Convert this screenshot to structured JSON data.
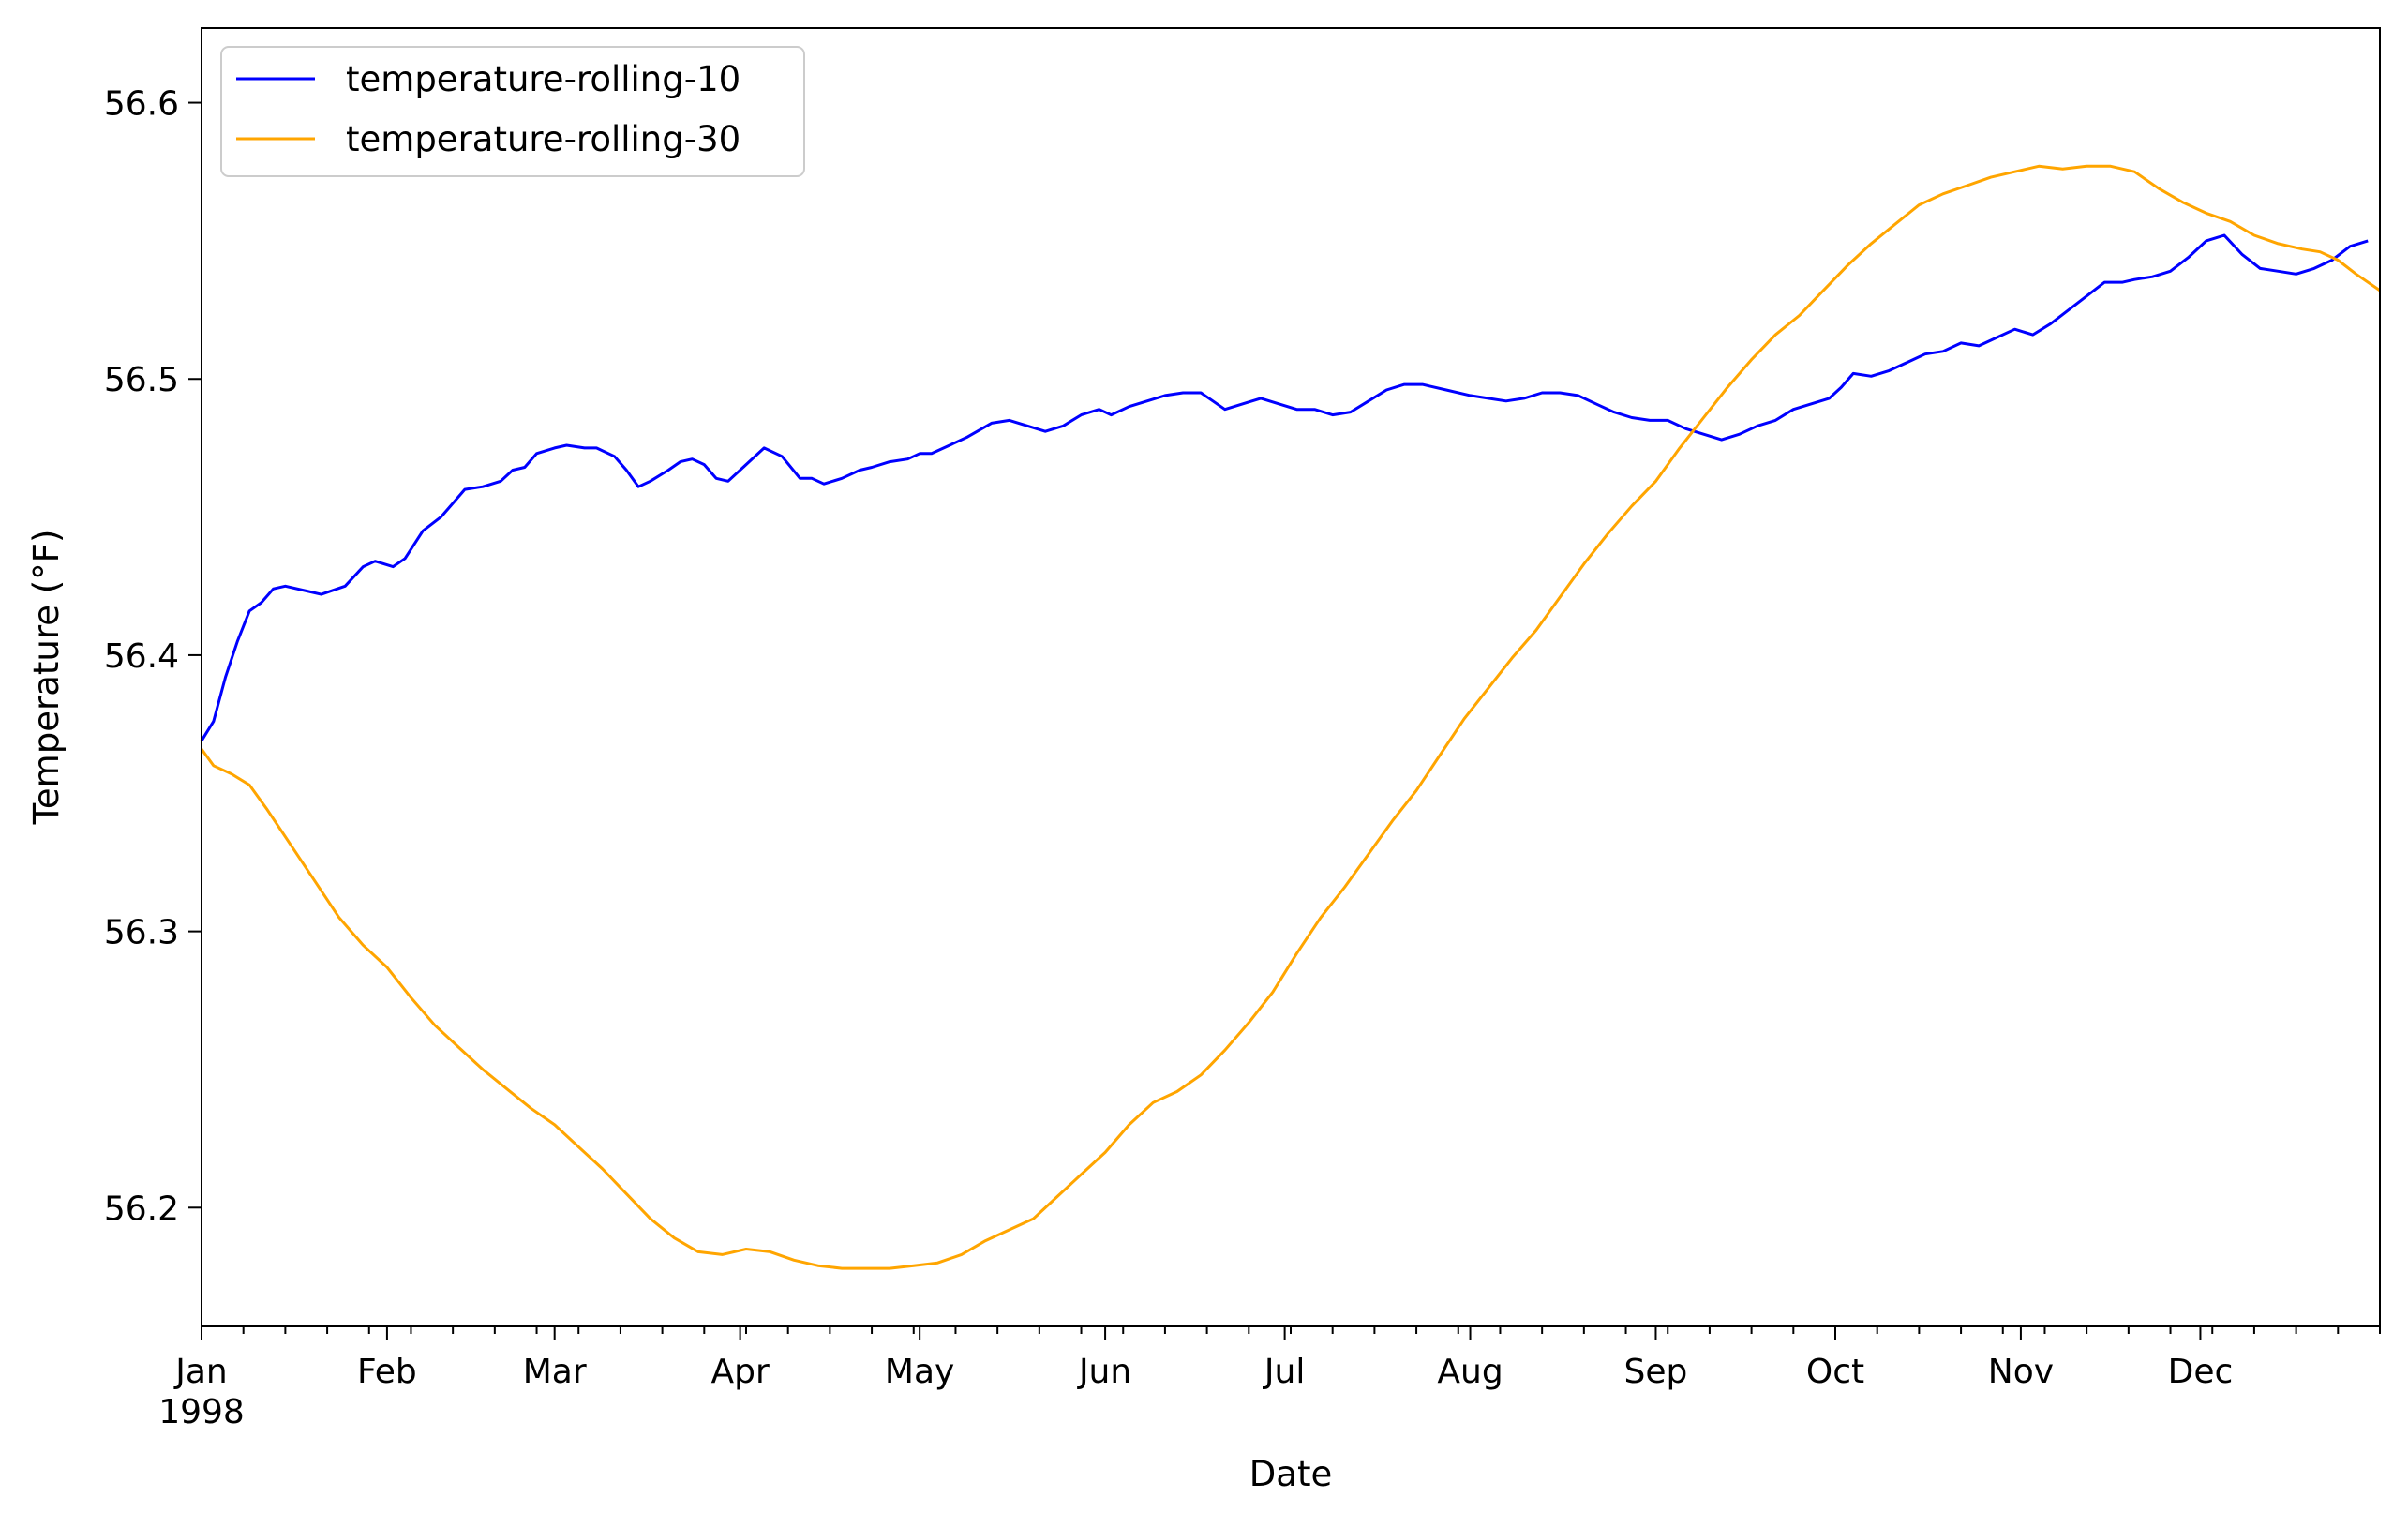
{
  "chart_data": {
    "type": "line",
    "title": "",
    "xlabel": "Date",
    "ylabel": "Temperature ($^\\circ$F)",
    "ylabel_display": "Temperature (°F)",
    "x_axis_type": "date",
    "xlim": [
      "1998-01-01",
      "1998-12-31"
    ],
    "ylim": [
      56.157,
      56.627
    ],
    "x_ticks": [
      {
        "date": "1998-01-01",
        "label": "Jan",
        "sublabel": "1998"
      },
      {
        "date": "1998-02-01",
        "label": "Feb"
      },
      {
        "date": "1998-03-01",
        "label": "Mar"
      },
      {
        "date": "1998-04-01",
        "label": "Apr"
      },
      {
        "date": "1998-05-01",
        "label": "May"
      },
      {
        "date": "1998-06-01",
        "label": "Jun"
      },
      {
        "date": "1998-07-01",
        "label": "Jul"
      },
      {
        "date": "1998-08-01",
        "label": "Aug"
      },
      {
        "date": "1998-09-01",
        "label": "Sep"
      },
      {
        "date": "1998-10-01",
        "label": "Oct"
      },
      {
        "date": "1998-11-01",
        "label": "Nov"
      },
      {
        "date": "1998-12-01",
        "label": "Dec"
      }
    ],
    "y_ticks": [
      {
        "value": 56.2,
        "label": "56.2"
      },
      {
        "value": 56.3,
        "label": "56.3"
      },
      {
        "value": 56.4,
        "label": "56.4"
      },
      {
        "value": 56.5,
        "label": "56.5"
      },
      {
        "value": 56.6,
        "label": "56.6"
      }
    ],
    "grid": false,
    "legend_position": "top-left",
    "series": [
      {
        "name": "temperature-rolling-10",
        "color": "#0000ff",
        "points": [
          [
            "1998-01-01",
            56.369
          ],
          [
            "1998-01-03",
            56.376
          ],
          [
            "1998-01-05",
            56.392
          ],
          [
            "1998-01-07",
            56.405
          ],
          [
            "1998-01-09",
            56.416
          ],
          [
            "1998-01-11",
            56.419
          ],
          [
            "1998-01-13",
            56.424
          ],
          [
            "1998-01-15",
            56.425
          ],
          [
            "1998-01-19",
            56.423
          ],
          [
            "1998-01-21",
            56.422
          ],
          [
            "1998-01-25",
            56.425
          ],
          [
            "1998-01-28",
            56.432
          ],
          [
            "1998-01-30",
            56.434
          ],
          [
            "1998-02-02",
            56.432
          ],
          [
            "1998-02-04",
            56.435
          ],
          [
            "1998-02-07",
            56.445
          ],
          [
            "1998-02-10",
            56.45
          ],
          [
            "1998-02-12",
            56.455
          ],
          [
            "1998-02-14",
            56.46
          ],
          [
            "1998-02-17",
            56.461
          ],
          [
            "1998-02-20",
            56.463
          ],
          [
            "1998-02-22",
            56.467
          ],
          [
            "1998-02-24",
            56.468
          ],
          [
            "1998-02-26",
            56.473
          ],
          [
            "1998-03-01",
            56.475
          ],
          [
            "1998-03-03",
            56.476
          ],
          [
            "1998-03-06",
            56.475
          ],
          [
            "1998-03-08",
            56.475
          ],
          [
            "1998-03-11",
            56.472
          ],
          [
            "1998-03-13",
            56.467
          ],
          [
            "1998-03-15",
            56.461
          ],
          [
            "1998-03-17",
            56.463
          ],
          [
            "1998-03-20",
            56.467
          ],
          [
            "1998-03-22",
            56.47
          ],
          [
            "1998-03-24",
            56.471
          ],
          [
            "1998-03-26",
            56.469
          ],
          [
            "1998-03-28",
            56.464
          ],
          [
            "1998-03-30",
            56.463
          ],
          [
            "1998-04-02",
            56.469
          ],
          [
            "1998-04-05",
            56.475
          ],
          [
            "1998-04-08",
            56.472
          ],
          [
            "1998-04-11",
            56.464
          ],
          [
            "1998-04-13",
            56.464
          ],
          [
            "1998-04-15",
            56.462
          ],
          [
            "1998-04-18",
            56.464
          ],
          [
            "1998-04-21",
            56.467
          ],
          [
            "1998-04-23",
            56.468
          ],
          [
            "1998-04-26",
            56.47
          ],
          [
            "1998-04-29",
            56.471
          ],
          [
            "1998-05-01",
            56.473
          ],
          [
            "1998-05-03",
            56.473
          ],
          [
            "1998-05-06",
            56.476
          ],
          [
            "1998-05-09",
            56.479
          ],
          [
            "1998-05-13",
            56.484
          ],
          [
            "1998-05-16",
            56.485
          ],
          [
            "1998-05-19",
            56.483
          ],
          [
            "1998-05-22",
            56.481
          ],
          [
            "1998-05-25",
            56.483
          ],
          [
            "1998-05-28",
            56.487
          ],
          [
            "1998-05-31",
            56.489
          ],
          [
            "1998-06-02",
            56.487
          ],
          [
            "1998-06-05",
            56.49
          ],
          [
            "1998-06-08",
            56.492
          ],
          [
            "1998-06-11",
            56.494
          ],
          [
            "1998-06-14",
            56.495
          ],
          [
            "1998-06-17",
            56.495
          ],
          [
            "1998-06-19",
            56.492
          ],
          [
            "1998-06-21",
            56.489
          ],
          [
            "1998-06-24",
            56.491
          ],
          [
            "1998-06-27",
            56.493
          ],
          [
            "1998-06-30",
            56.491
          ],
          [
            "1998-07-03",
            56.489
          ],
          [
            "1998-07-06",
            56.489
          ],
          [
            "1998-07-09",
            56.487
          ],
          [
            "1998-07-12",
            56.488
          ],
          [
            "1998-07-15",
            56.492
          ],
          [
            "1998-07-18",
            56.496
          ],
          [
            "1998-07-21",
            56.498
          ],
          [
            "1998-07-24",
            56.498
          ],
          [
            "1998-07-28",
            56.496
          ],
          [
            "1998-08-01",
            56.494
          ],
          [
            "1998-08-04",
            56.493
          ],
          [
            "1998-08-07",
            56.492
          ],
          [
            "1998-08-10",
            56.493
          ],
          [
            "1998-08-13",
            56.495
          ],
          [
            "1998-08-16",
            56.495
          ],
          [
            "1998-08-19",
            56.494
          ],
          [
            "1998-08-22",
            56.491
          ],
          [
            "1998-08-25",
            56.488
          ],
          [
            "1998-08-28",
            56.486
          ],
          [
            "1998-08-31",
            56.485
          ],
          [
            "1998-09-03",
            56.485
          ],
          [
            "1998-09-06",
            56.482
          ],
          [
            "1998-09-09",
            56.48
          ],
          [
            "1998-09-12",
            56.478
          ],
          [
            "1998-09-15",
            56.48
          ],
          [
            "1998-09-18",
            56.483
          ],
          [
            "1998-09-21",
            56.485
          ],
          [
            "1998-09-24",
            56.489
          ],
          [
            "1998-09-27",
            56.491
          ],
          [
            "1998-09-30",
            56.493
          ],
          [
            "1998-10-02",
            56.497
          ],
          [
            "1998-10-04",
            56.502
          ],
          [
            "1998-10-07",
            56.501
          ],
          [
            "1998-10-10",
            56.503
          ],
          [
            "1998-10-13",
            56.506
          ],
          [
            "1998-10-16",
            56.509
          ],
          [
            "1998-10-19",
            56.51
          ],
          [
            "1998-10-22",
            56.513
          ],
          [
            "1998-10-25",
            56.512
          ],
          [
            "1998-10-28",
            56.515
          ],
          [
            "1998-10-31",
            56.518
          ],
          [
            "1998-11-03",
            56.516
          ],
          [
            "1998-11-06",
            56.52
          ],
          [
            "1998-11-09",
            56.525
          ],
          [
            "1998-11-12",
            56.53
          ],
          [
            "1998-11-15",
            56.535
          ],
          [
            "1998-11-18",
            56.535
          ],
          [
            "1998-11-20",
            56.536
          ],
          [
            "1998-11-23",
            56.537
          ],
          [
            "1998-11-26",
            56.539
          ],
          [
            "1998-11-29",
            56.544
          ],
          [
            "1998-12-02",
            56.55
          ],
          [
            "1998-12-05",
            56.552
          ],
          [
            "1998-12-08",
            56.545
          ],
          [
            "1998-12-11",
            56.54
          ],
          [
            "1998-12-14",
            56.539
          ],
          [
            "1998-12-17",
            56.538
          ],
          [
            "1998-12-20",
            56.54
          ],
          [
            "1998-12-23",
            56.543
          ],
          [
            "1998-12-26",
            56.548
          ],
          [
            "1998-12-29",
            56.55
          ]
        ]
      },
      {
        "name": "temperature-rolling-30",
        "color": "#ffa500",
        "points": [
          [
            "1998-01-01",
            56.366
          ],
          [
            "1998-01-03",
            56.36
          ],
          [
            "1998-01-06",
            56.357
          ],
          [
            "1998-01-09",
            56.353
          ],
          [
            "1998-01-12",
            56.344
          ],
          [
            "1998-01-16",
            56.331
          ],
          [
            "1998-01-20",
            56.318
          ],
          [
            "1998-01-24",
            56.305
          ],
          [
            "1998-01-28",
            56.295
          ],
          [
            "1998-02-01",
            56.287
          ],
          [
            "1998-02-05",
            56.276
          ],
          [
            "1998-02-09",
            56.266
          ],
          [
            "1998-02-13",
            56.258
          ],
          [
            "1998-02-17",
            56.25
          ],
          [
            "1998-02-21",
            56.243
          ],
          [
            "1998-02-25",
            56.236
          ],
          [
            "1998-03-01",
            56.23
          ],
          [
            "1998-03-05",
            56.222
          ],
          [
            "1998-03-09",
            56.214
          ],
          [
            "1998-03-13",
            56.205
          ],
          [
            "1998-03-17",
            56.196
          ],
          [
            "1998-03-21",
            56.189
          ],
          [
            "1998-03-25",
            56.184
          ],
          [
            "1998-03-29",
            56.183
          ],
          [
            "1998-04-02",
            56.185
          ],
          [
            "1998-04-06",
            56.184
          ],
          [
            "1998-04-10",
            56.181
          ],
          [
            "1998-04-14",
            56.179
          ],
          [
            "1998-04-18",
            56.178
          ],
          [
            "1998-04-22",
            56.178
          ],
          [
            "1998-04-26",
            56.178
          ],
          [
            "1998-04-30",
            56.179
          ],
          [
            "1998-05-04",
            56.18
          ],
          [
            "1998-05-08",
            56.183
          ],
          [
            "1998-05-12",
            56.188
          ],
          [
            "1998-05-16",
            56.192
          ],
          [
            "1998-05-20",
            56.196
          ],
          [
            "1998-05-24",
            56.204
          ],
          [
            "1998-05-28",
            56.212
          ],
          [
            "1998-06-01",
            56.22
          ],
          [
            "1998-06-05",
            56.23
          ],
          [
            "1998-06-09",
            56.238
          ],
          [
            "1998-06-13",
            56.242
          ],
          [
            "1998-06-17",
            56.248
          ],
          [
            "1998-06-21",
            56.257
          ],
          [
            "1998-06-25",
            56.267
          ],
          [
            "1998-06-29",
            56.278
          ],
          [
            "1998-07-03",
            56.292
          ],
          [
            "1998-07-07",
            56.305
          ],
          [
            "1998-07-11",
            56.316
          ],
          [
            "1998-07-15",
            56.328
          ],
          [
            "1998-07-19",
            56.34
          ],
          [
            "1998-07-23",
            56.351
          ],
          [
            "1998-07-27",
            56.364
          ],
          [
            "1998-07-31",
            56.377
          ],
          [
            "1998-08-04",
            56.388
          ],
          [
            "1998-08-08",
            56.399
          ],
          [
            "1998-08-12",
            56.409
          ],
          [
            "1998-08-16",
            56.421
          ],
          [
            "1998-08-20",
            56.433
          ],
          [
            "1998-08-24",
            56.444
          ],
          [
            "1998-08-28",
            56.454
          ],
          [
            "1998-09-01",
            56.463
          ],
          [
            "1998-09-05",
            56.475
          ],
          [
            "1998-09-09",
            56.486
          ],
          [
            "1998-09-13",
            56.497
          ],
          [
            "1998-09-17",
            56.507
          ],
          [
            "1998-09-21",
            56.516
          ],
          [
            "1998-09-25",
            56.523
          ],
          [
            "1998-09-29",
            56.532
          ],
          [
            "1998-10-03",
            56.541
          ],
          [
            "1998-10-07",
            56.549
          ],
          [
            "1998-10-11",
            56.556
          ],
          [
            "1998-10-15",
            56.563
          ],
          [
            "1998-10-19",
            56.567
          ],
          [
            "1998-10-23",
            56.57
          ],
          [
            "1998-10-27",
            56.573
          ],
          [
            "1998-10-31",
            56.575
          ],
          [
            "1998-11-04",
            56.577
          ],
          [
            "1998-11-08",
            56.576
          ],
          [
            "1998-11-12",
            56.577
          ],
          [
            "1998-11-16",
            56.577
          ],
          [
            "1998-11-20",
            56.575
          ],
          [
            "1998-11-24",
            56.569
          ],
          [
            "1998-11-28",
            56.564
          ],
          [
            "1998-12-02",
            56.56
          ],
          [
            "1998-12-06",
            56.557
          ],
          [
            "1998-12-10",
            56.552
          ],
          [
            "1998-12-14",
            56.549
          ],
          [
            "1998-12-18",
            56.547
          ],
          [
            "1998-12-21",
            56.546
          ],
          [
            "1998-12-24",
            56.543
          ],
          [
            "1998-12-27",
            56.538
          ],
          [
            "1998-12-31",
            56.532
          ]
        ]
      }
    ]
  }
}
